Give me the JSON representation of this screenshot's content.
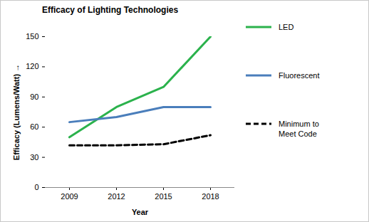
{
  "chart_data": {
    "type": "line",
    "title": "Efficacy of Lighting Technologies",
    "x_label": "Year",
    "y_label": "Efficacy (Lumens/Watt)",
    "categories": [
      "2009",
      "2012",
      "2015",
      "2018"
    ],
    "series": [
      {
        "name": "LED",
        "color": "#2bb24c",
        "line_style": "solid",
        "values": [
          50,
          80,
          100,
          150
        ]
      },
      {
        "name": "Fluorescent",
        "color": "#4a7ebb",
        "line_style": "solid",
        "values": [
          65,
          70,
          80,
          80
        ]
      },
      {
        "name": "Minimum to Meet Code",
        "color": "#000000",
        "line_style": "dashed",
        "values": [
          42,
          42,
          43,
          52
        ]
      }
    ],
    "ylim": [
      0,
      150
    ],
    "yticks": [
      0,
      30,
      60,
      90,
      120,
      150
    ],
    "grid": false,
    "legend": "right"
  }
}
